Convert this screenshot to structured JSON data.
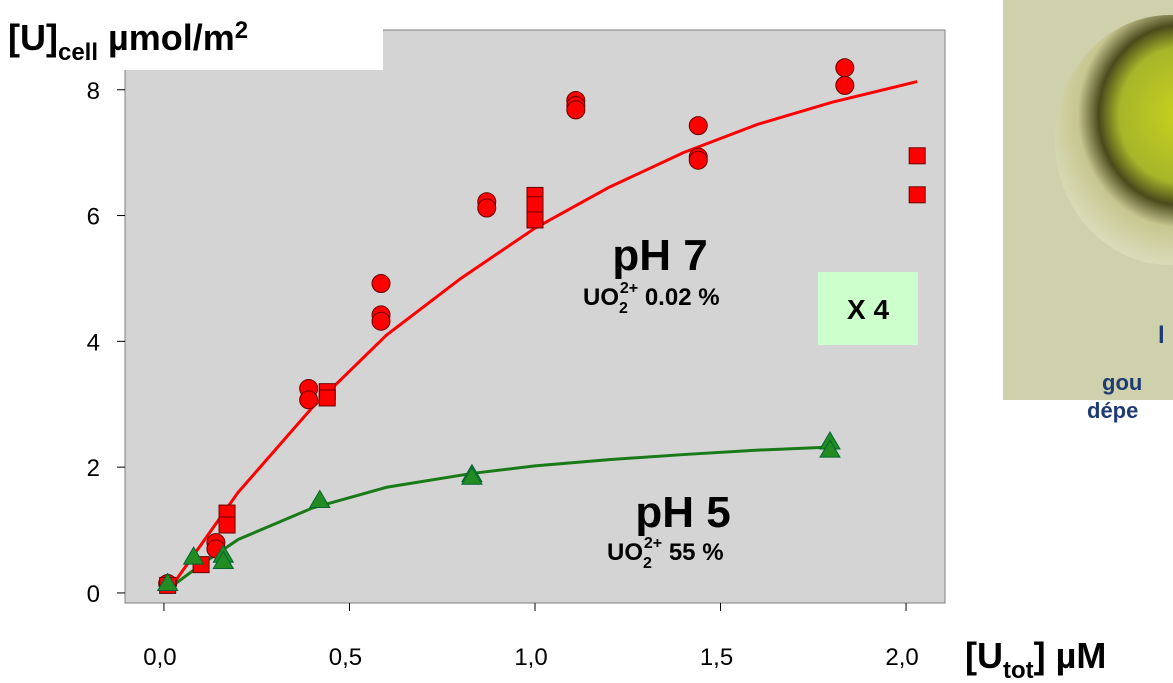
{
  "chart_data": {
    "type": "scatter",
    "y_label": {
      "parts": [
        "[U]",
        "cell",
        " µmol/m",
        "2"
      ]
    },
    "x_label": {
      "parts": [
        "[U",
        "tot",
        "] µM"
      ]
    },
    "xlim": [
      -0.105,
      2.105
    ],
    "ylim": [
      -0.16,
      8.95
    ],
    "xticks": [
      {
        "value": 0,
        "label": "0,0"
      },
      {
        "value": 0.5,
        "label": "0,5"
      },
      {
        "value": 1,
        "label": "1,0"
      },
      {
        "value": 1.5,
        "label": "1,5"
      },
      {
        "value": 2,
        "label": "2,0"
      }
    ],
    "yticks": [
      0,
      2,
      4,
      6,
      8
    ],
    "background": "#d4d4d4",
    "series": [
      {
        "kind": "marker",
        "marker": "circle",
        "color": "#ff0000",
        "x": [
          0.01,
          0.14,
          0.14,
          0.39,
          0.39,
          0.585,
          0.585,
          0.585,
          0.87,
          0.87,
          1.11,
          1.11,
          1.11,
          1.44,
          1.44,
          1.44,
          1.835,
          1.835
        ],
        "values": [
          0.15,
          0.8,
          0.7,
          3.25,
          3.07,
          4.92,
          4.42,
          4.32,
          6.22,
          6.12,
          7.83,
          7.75,
          7.68,
          7.43,
          6.93,
          6.88,
          8.35,
          8.07
        ]
      },
      {
        "kind": "marker",
        "marker": "square",
        "color": "#ff0000",
        "x": [
          0.01,
          0.1,
          0.17,
          0.17,
          0.44,
          0.44,
          1.0,
          1.0,
          1.0,
          2.03,
          2.03
        ],
        "values": [
          0.12,
          0.45,
          1.27,
          1.08,
          3.2,
          3.1,
          6.32,
          6.17,
          5.93,
          6.95,
          6.33
        ]
      },
      {
        "kind": "marker",
        "marker": "triangle",
        "color": "#228b22",
        "x": [
          0.01,
          0.08,
          0.16,
          0.16,
          0.42,
          0.83,
          0.83,
          1.795,
          1.795
        ],
        "values": [
          0.15,
          0.57,
          0.6,
          0.5,
          1.47,
          1.88,
          1.84,
          2.4,
          2.27
        ]
      },
      {
        "kind": "line",
        "color": "#ff0000",
        "x": [
          0.02,
          0.2,
          0.4,
          0.6,
          0.8,
          1.0,
          1.2,
          1.4,
          1.6,
          1.8,
          2.03
        ],
        "values": [
          0.1,
          1.6,
          2.95,
          4.1,
          5.0,
          5.8,
          6.45,
          7.0,
          7.45,
          7.8,
          8.13
        ]
      },
      {
        "kind": "line",
        "color": "#1a7a1a",
        "x": [
          0.02,
          0.1,
          0.2,
          0.4,
          0.6,
          0.83,
          1.0,
          1.2,
          1.4,
          1.6,
          1.8
        ],
        "values": [
          0.1,
          0.45,
          0.85,
          1.35,
          1.68,
          1.9,
          2.02,
          2.12,
          2.2,
          2.27,
          2.32
        ]
      }
    ],
    "annotations": [
      {
        "parts": [
          "pH 7"
        ]
      },
      {
        "parts": [
          "UO",
          "2",
          "2+",
          " 0.02 %"
        ]
      },
      {
        "parts": [
          "X 4"
        ]
      },
      {
        "parts": [
          "pH 5"
        ]
      },
      {
        "parts": [
          "UO",
          "2",
          "2+",
          " 55 %"
        ]
      }
    ]
  },
  "inset": {
    "texts": [
      "l",
      "gou",
      "dépe"
    ]
  }
}
